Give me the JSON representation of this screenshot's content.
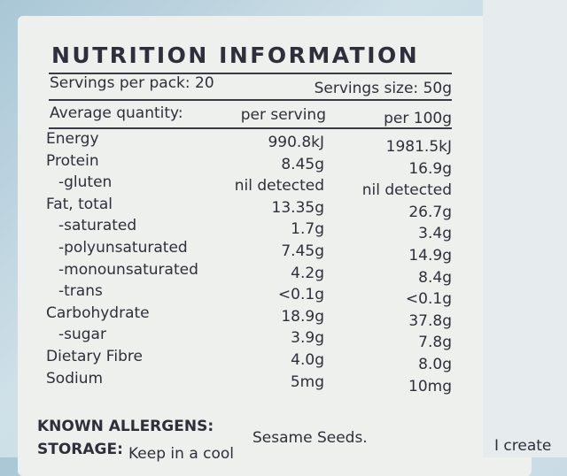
{
  "header": {
    "title": "NUTRITION INFORMATION",
    "servings_per_pack": "Servings per pack: 20",
    "serving_size": "Servings size: 50g"
  },
  "table": {
    "columns": [
      "Average quantity:",
      "per serving",
      "per 100g"
    ],
    "rows": [
      [
        "Energy",
        "990.8kJ",
        "1981.5kJ"
      ],
      [
        "Protein",
        "8.45g",
        "16.9g"
      ],
      [
        "-gluten",
        "nil detected",
        "nil detected"
      ],
      [
        "Fat, total",
        "13.35g",
        "26.7g"
      ],
      [
        "-saturated",
        "1.7g",
        "3.4g"
      ],
      [
        "-polyunsaturated",
        "7.45g",
        "14.9g"
      ],
      [
        "-monounsaturated",
        "4.2g",
        "8.4g"
      ],
      [
        "-trans",
        "<0.1g",
        "<0.1g"
      ],
      [
        "Carbohydrate",
        "18.9g",
        "37.8g"
      ],
      [
        "-sugar",
        "3.9g",
        "7.8g"
      ],
      [
        "Dietary Fibre",
        "4.0g",
        "8.0g"
      ],
      [
        "Sodium",
        "5mg",
        "10mg"
      ]
    ]
  },
  "footer": {
    "allergens_label": "KNOWN ALLERGENS:",
    "allergens": "Sesame Seeds.",
    "storage_label": "STORAGE:",
    "storage": "Keep in a cool",
    "side_text": "I create"
  }
}
